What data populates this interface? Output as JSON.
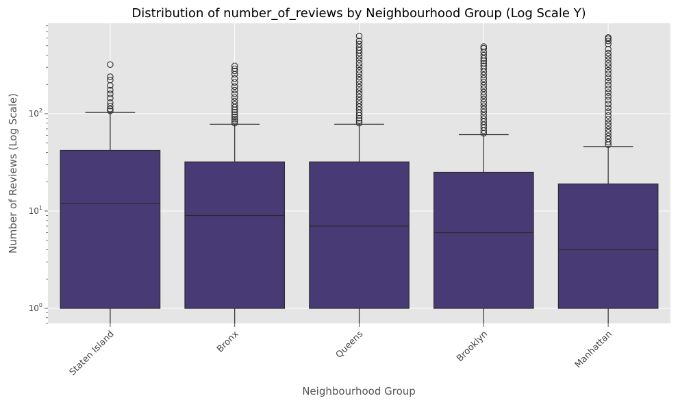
{
  "chart_data": {
    "type": "box",
    "title": "Distribution of number_of_reviews by Neighbourhood Group (Log Scale Y)",
    "xlabel": "Neighbourhood Group",
    "ylabel": "Number of Reviews (Log Scale)",
    "yscale": "log",
    "ylim": [
      0.7,
      850
    ],
    "yticks": [
      {
        "value": 1,
        "base": "10",
        "exp": "0"
      },
      {
        "value": 10,
        "base": "10",
        "exp": "1"
      },
      {
        "value": 100,
        "base": "10",
        "exp": "2"
      }
    ],
    "grid": true,
    "colors": {
      "box_fill": "#483a75",
      "box_edge": "#2b2b2b",
      "plot_bg": "#e5e5e5",
      "grid": "#ffffff"
    },
    "categories": [
      "Staten Island",
      "Bronx",
      "Queens",
      "Brooklyn",
      "Manhattan"
    ],
    "boxes": [
      {
        "name": "Staten Island",
        "whislo": 0.7,
        "q1": 1,
        "med": 12,
        "q3": 42,
        "whishi": 103,
        "fliers": [
          107,
          112,
          120,
          130,
          145,
          160,
          175,
          195,
          222,
          240,
          320
        ]
      },
      {
        "name": "Bronx",
        "whislo": 0.7,
        "q1": 1,
        "med": 9,
        "q3": 32,
        "whishi": 78,
        "fliers": [
          80,
          84,
          88,
          93,
          98,
          104,
          110,
          117,
          125,
          135,
          147,
          160,
          175,
          190,
          210,
          230,
          255,
          275,
          290,
          310
        ]
      },
      {
        "name": "Queens",
        "whislo": 0.7,
        "q1": 1,
        "med": 7,
        "q3": 32,
        "whishi": 78,
        "fliers": [
          80,
          85,
          90,
          96,
          102,
          110,
          118,
          127,
          137,
          148,
          160,
          173,
          187,
          203,
          220,
          238,
          258,
          280,
          305,
          330,
          360,
          390,
          420,
          450,
          480,
          520,
          560,
          630
        ]
      },
      {
        "name": "Brooklyn",
        "whislo": 0.7,
        "q1": 1,
        "med": 6,
        "q3": 25,
        "whishi": 61,
        "fliers": [
          63,
          67,
          72,
          77,
          83,
          89,
          96,
          104,
          112,
          121,
          131,
          142,
          154,
          167,
          181,
          196,
          212,
          230,
          250,
          270,
          290,
          310,
          330,
          350,
          370,
          400,
          430,
          470,
          490
        ]
      },
      {
        "name": "Manhattan",
        "whislo": 0.7,
        "q1": 1,
        "med": 4,
        "q3": 19,
        "whishi": 46,
        "fliers": [
          48,
          51,
          55,
          59,
          64,
          69,
          75,
          81,
          88,
          96,
          105,
          115,
          126,
          138,
          151,
          165,
          180,
          197,
          215,
          235,
          257,
          280,
          305,
          330,
          360,
          390,
          420,
          460,
          520,
          560,
          590,
          607
        ]
      }
    ]
  }
}
